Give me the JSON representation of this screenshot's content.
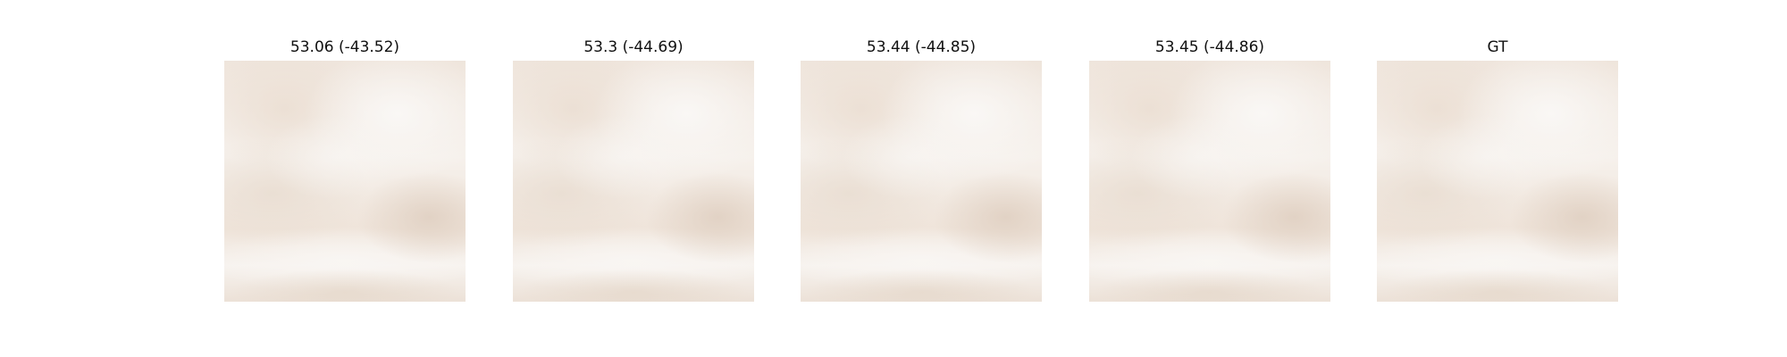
{
  "panels": [
    {
      "title": "53.06 (-43.52)"
    },
    {
      "title": "53.3 (-44.69)"
    },
    {
      "title": "53.44 (-44.85)"
    },
    {
      "title": "53.45 (-44.86)"
    },
    {
      "title": "GT"
    }
  ]
}
